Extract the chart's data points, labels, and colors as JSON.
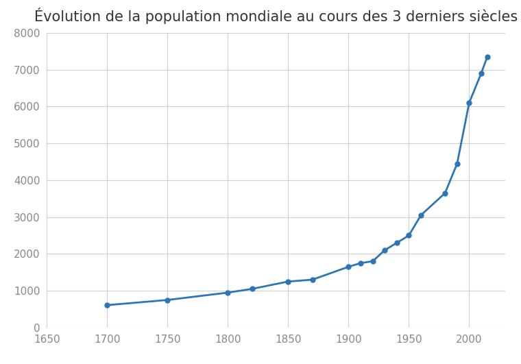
{
  "title": "Évolution de la population mondiale au cours des 3 derniers siècles",
  "years": [
    1700,
    1750,
    1800,
    1820,
    1850,
    1870,
    1900,
    1910,
    1920,
    1930,
    1940,
    1950,
    1960,
    1980,
    1990,
    2000,
    2010,
    2015
  ],
  "population": [
    610,
    750,
    950,
    1050,
    1250,
    1300,
    1650,
    1750,
    1800,
    2100,
    2300,
    2500,
    3050,
    3650,
    4450,
    6100,
    6900,
    7350
  ],
  "line_color": "#2e75b6",
  "marker_color": "#2e75b6",
  "background_color": "#ffffff",
  "grid_color": "#d0d0d0",
  "xlim": [
    1650,
    2030
  ],
  "ylim": [
    0,
    8000
  ],
  "xticks": [
    1650,
    1700,
    1750,
    1800,
    1850,
    1900,
    1950,
    2000
  ],
  "yticks": [
    0,
    1000,
    2000,
    3000,
    4000,
    5000,
    6000,
    7000,
    8000
  ],
  "title_fontsize": 15,
  "tick_fontsize": 11,
  "tick_color": "#888888"
}
